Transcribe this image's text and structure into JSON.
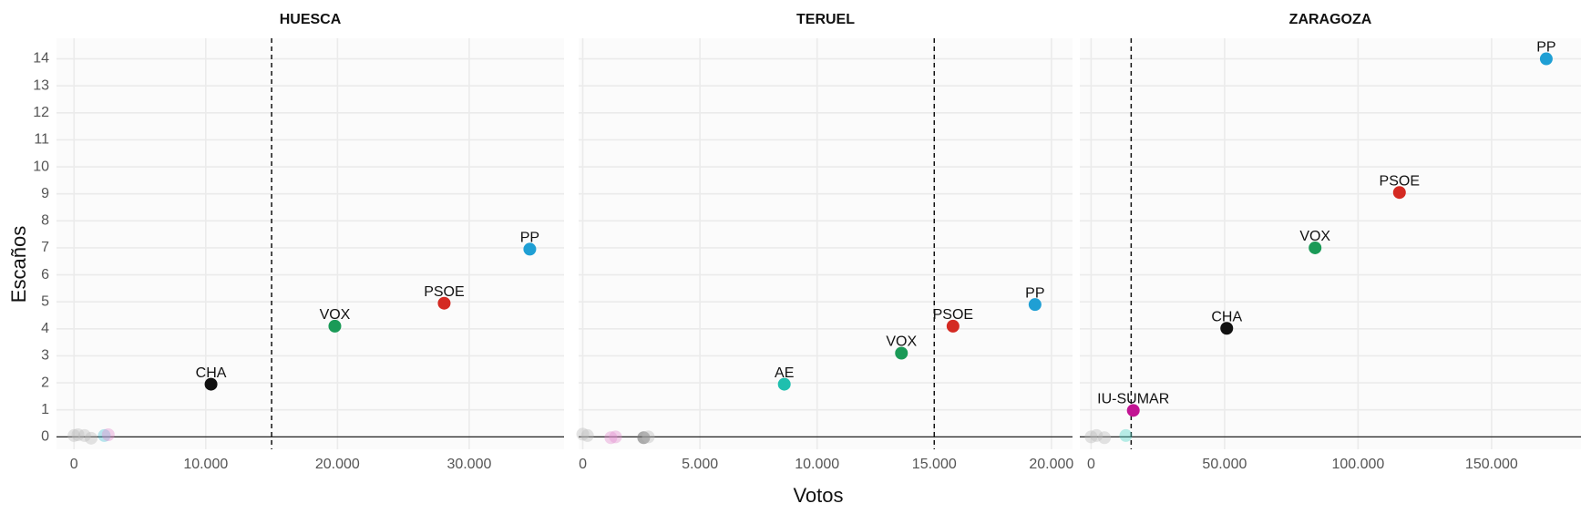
{
  "chart_data": {
    "type": "scatter",
    "xlabel": "Votos",
    "ylabel": "Escaños",
    "ylim": [
      -0.46,
      14.76
    ],
    "yticks": [
      0,
      1,
      2,
      3,
      4,
      5,
      6,
      7,
      8,
      9,
      10,
      11,
      12,
      13,
      14
    ],
    "grid": true,
    "panels": [
      {
        "title": "HUESCA",
        "xlim": [
          -1330,
          37200
        ],
        "threshold": 15000,
        "xticks": [
          0,
          {
            "value": 10000,
            "label": "10.000"
          },
          {
            "value": 20000,
            "label": "20.000"
          },
          {
            "value": 30000,
            "label": "30.000"
          }
        ],
        "points": [
          {
            "label": null,
            "x": 0,
            "y": 0.05,
            "color": "#bbbbbb66"
          },
          {
            "label": null,
            "x": 300,
            "y": 0.08,
            "color": "#bbbbbb66"
          },
          {
            "label": null,
            "x": 800,
            "y": 0.05,
            "color": "#bbbbbb66"
          },
          {
            "label": null,
            "x": 1300,
            "y": -0.05,
            "color": "#bbbbbb66"
          },
          {
            "label": null,
            "x": 2300,
            "y": 0.05,
            "color": "#4fc3d766"
          },
          {
            "label": null,
            "x": 2600,
            "y": 0.08,
            "color": "#e48fd066"
          },
          {
            "label": "CHA",
            "x": 10400,
            "y": 1.95,
            "color": "#111111"
          },
          {
            "label": "VOX",
            "x": 19800,
            "y": 4.1,
            "color": "#1a9a57"
          },
          {
            "label": "PSOE",
            "x": 28100,
            "y": 4.95,
            "color": "#d42a22"
          },
          {
            "label": "PP",
            "x": 34600,
            "y": 6.95,
            "color": "#1f9fd4"
          }
        ]
      },
      {
        "title": "TERUEL",
        "xlim": [
          -176,
          20900
        ],
        "threshold": 15000,
        "xticks": [
          0,
          {
            "value": 5000,
            "label": "5.000"
          },
          {
            "value": 10000,
            "label": "10.000"
          },
          {
            "value": 15000,
            "label": "15.000"
          },
          {
            "value": 20000,
            "label": "20.000"
          }
        ],
        "points": [
          {
            "label": null,
            "x": 0,
            "y": 0.1,
            "color": "#bbbbbb66"
          },
          {
            "label": null,
            "x": 200,
            "y": 0.05,
            "color": "#bbbbbb66"
          },
          {
            "label": null,
            "x": 1200,
            "y": -0.03,
            "color": "#e48fd066"
          },
          {
            "label": null,
            "x": 1400,
            "y": 0,
            "color": "#e48fd066"
          },
          {
            "label": null,
            "x": 2600,
            "y": -0.03,
            "color": "#77777799"
          },
          {
            "label": null,
            "x": 2800,
            "y": 0,
            "color": "#bbbbbb66"
          },
          {
            "label": "AE",
            "x": 8600,
            "y": 1.95,
            "color": "#1fbfae"
          },
          {
            "label": "VOX",
            "x": 13600,
            "y": 3.1,
            "color": "#1a9a57"
          },
          {
            "label": "PSOE",
            "x": 15800,
            "y": 4.1,
            "color": "#d42a22"
          },
          {
            "label": "PP",
            "x": 19300,
            "y": 4.9,
            "color": "#1f9fd4"
          }
        ]
      },
      {
        "title": "ZARAGOZA",
        "xlim": [
          -4240,
          183500
        ],
        "threshold": 15000,
        "xticks": [
          0,
          {
            "value": 50000,
            "label": "50.000"
          },
          {
            "value": 100000,
            "label": "100.000"
          },
          {
            "value": 150000,
            "label": "150.000"
          }
        ],
        "points": [
          {
            "label": null,
            "x": 0,
            "y": 0,
            "color": "#bbbbbb66"
          },
          {
            "label": null,
            "x": 2000,
            "y": 0.05,
            "color": "#bbbbbb66"
          },
          {
            "label": null,
            "x": 5000,
            "y": -0.03,
            "color": "#bbbbbb66"
          },
          {
            "label": null,
            "x": 13000,
            "y": 0.05,
            "color": "#4fd7c766"
          },
          {
            "label": "IU-SUMAR",
            "x": 15800,
            "y": 0.98,
            "color": "#c21493"
          },
          {
            "label": "CHA",
            "x": 50800,
            "y": 4.02,
            "color": "#111111"
          },
          {
            "label": "VOX",
            "x": 83900,
            "y": 7.0,
            "color": "#1a9a57"
          },
          {
            "label": "PSOE",
            "x": 115500,
            "y": 9.05,
            "color": "#d42a22"
          },
          {
            "label": "PP",
            "x": 170500,
            "y": 14,
            "color": "#1f9fd4"
          }
        ]
      }
    ]
  }
}
